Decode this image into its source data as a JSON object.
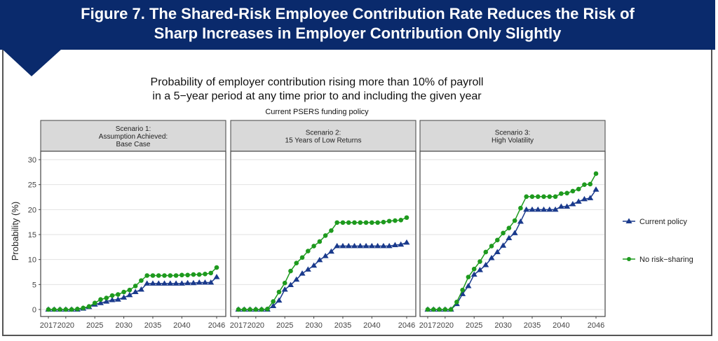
{
  "banner": {
    "title_line1": "Figure 7. The Shared-Risk Employee Contribution Rate Reduces the Risk of",
    "title_line2": "Sharp Increases in Employer Contribution Only Slightly"
  },
  "colors": {
    "banner": "#0a2a6c",
    "current": "#1a3a8c",
    "no_risk": "#1e9a1e"
  },
  "chart_data": {
    "type": "line",
    "title_line1": "Probability of employer contribution rising more than 10% of payroll",
    "title_line2": "in a 5−year period at any time prior to and including the given year",
    "subtitle": "Current PSERS funding policy",
    "ylabel": "Probability (%)",
    "xlabel": "",
    "ylim": [
      0,
      30
    ],
    "yticks": [
      "0",
      "5",
      "10",
      "15",
      "20",
      "25",
      "30"
    ],
    "xticks": [
      "2017",
      "2020",
      "2025",
      "2030",
      "2035",
      "2040",
      "2046"
    ],
    "x": [
      2017,
      2018,
      2019,
      2020,
      2021,
      2022,
      2023,
      2024,
      2025,
      2026,
      2027,
      2028,
      2029,
      2030,
      2031,
      2032,
      2033,
      2034,
      2035,
      2036,
      2037,
      2038,
      2039,
      2040,
      2041,
      2042,
      2043,
      2044,
      2045,
      2046
    ],
    "legend": {
      "placement": "right",
      "entries": [
        "Current policy",
        "No risk−sharing"
      ]
    },
    "panels": [
      {
        "strip": [
          "Scenario 1:",
          "Assumption Achieved:",
          "Base Case"
        ],
        "series": [
          {
            "name": "Current policy",
            "marker": "triangle",
            "values": [
              0,
              0,
              0,
              0,
              0,
              0,
              0.2,
              0.5,
              1.0,
              1.3,
              1.6,
              1.9,
              2.0,
              2.4,
              2.9,
              3.5,
              4.0,
              5.2,
              5.2,
              5.2,
              5.2,
              5.2,
              5.2,
              5.2,
              5.3,
              5.3,
              5.4,
              5.4,
              5.4,
              6.5
            ]
          },
          {
            "name": "No risk−sharing",
            "marker": "circle",
            "values": [
              0,
              0,
              0,
              0,
              0,
              0.1,
              0.3,
              0.6,
              1.3,
              2.0,
              2.3,
              2.8,
              3.0,
              3.5,
              3.9,
              4.7,
              5.8,
              6.8,
              6.8,
              6.8,
              6.8,
              6.8,
              6.8,
              6.9,
              6.9,
              7.0,
              7.0,
              7.1,
              7.3,
              8.4
            ]
          }
        ]
      },
      {
        "strip": [
          "Scenario 2:",
          "15 Years of Low Returns"
        ],
        "series": [
          {
            "name": "Current policy",
            "marker": "triangle",
            "values": [
              0,
              0,
              0,
              0,
              0,
              0,
              0.7,
              1.8,
              4.0,
              4.9,
              6.0,
              7.2,
              8.0,
              8.8,
              9.9,
              10.7,
              11.6,
              12.7,
              12.7,
              12.7,
              12.7,
              12.7,
              12.7,
              12.7,
              12.7,
              12.7,
              12.7,
              12.9,
              13.0,
              13.4
            ]
          },
          {
            "name": "No risk−sharing",
            "marker": "circle",
            "values": [
              0,
              0,
              0,
              0,
              0,
              0.1,
              1.6,
              3.5,
              5.3,
              7.7,
              9.3,
              10.4,
              11.7,
              12.7,
              13.6,
              14.8,
              15.8,
              17.4,
              17.4,
              17.4,
              17.4,
              17.4,
              17.4,
              17.4,
              17.4,
              17.5,
              17.7,
              17.8,
              17.9,
              18.4
            ]
          }
        ]
      },
      {
        "strip": [
          "Scenario 3:",
          "High Volatility"
        ],
        "series": [
          {
            "name": "Current policy",
            "marker": "triangle",
            "values": [
              0,
              0,
              0,
              0,
              0,
              1.1,
              3.1,
              4.7,
              7.0,
              7.9,
              8.9,
              10.3,
              11.5,
              12.8,
              14.3,
              15.3,
              17.6,
              20.0,
              20.0,
              20.0,
              20.0,
              20.0,
              20.0,
              20.6,
              20.6,
              21.1,
              21.6,
              22.1,
              22.3,
              24.0
            ]
          },
          {
            "name": "No risk−sharing",
            "marker": "circle",
            "values": [
              0,
              0,
              0,
              0,
              0,
              1.5,
              3.9,
              6.5,
              8.1,
              9.6,
              11.5,
              12.7,
              13.9,
              15.3,
              16.3,
              17.8,
              20.3,
              22.6,
              22.6,
              22.6,
              22.6,
              22.6,
              22.6,
              23.2,
              23.3,
              23.7,
              24.1,
              25.0,
              25.1,
              27.2
            ]
          }
        ]
      }
    ]
  }
}
